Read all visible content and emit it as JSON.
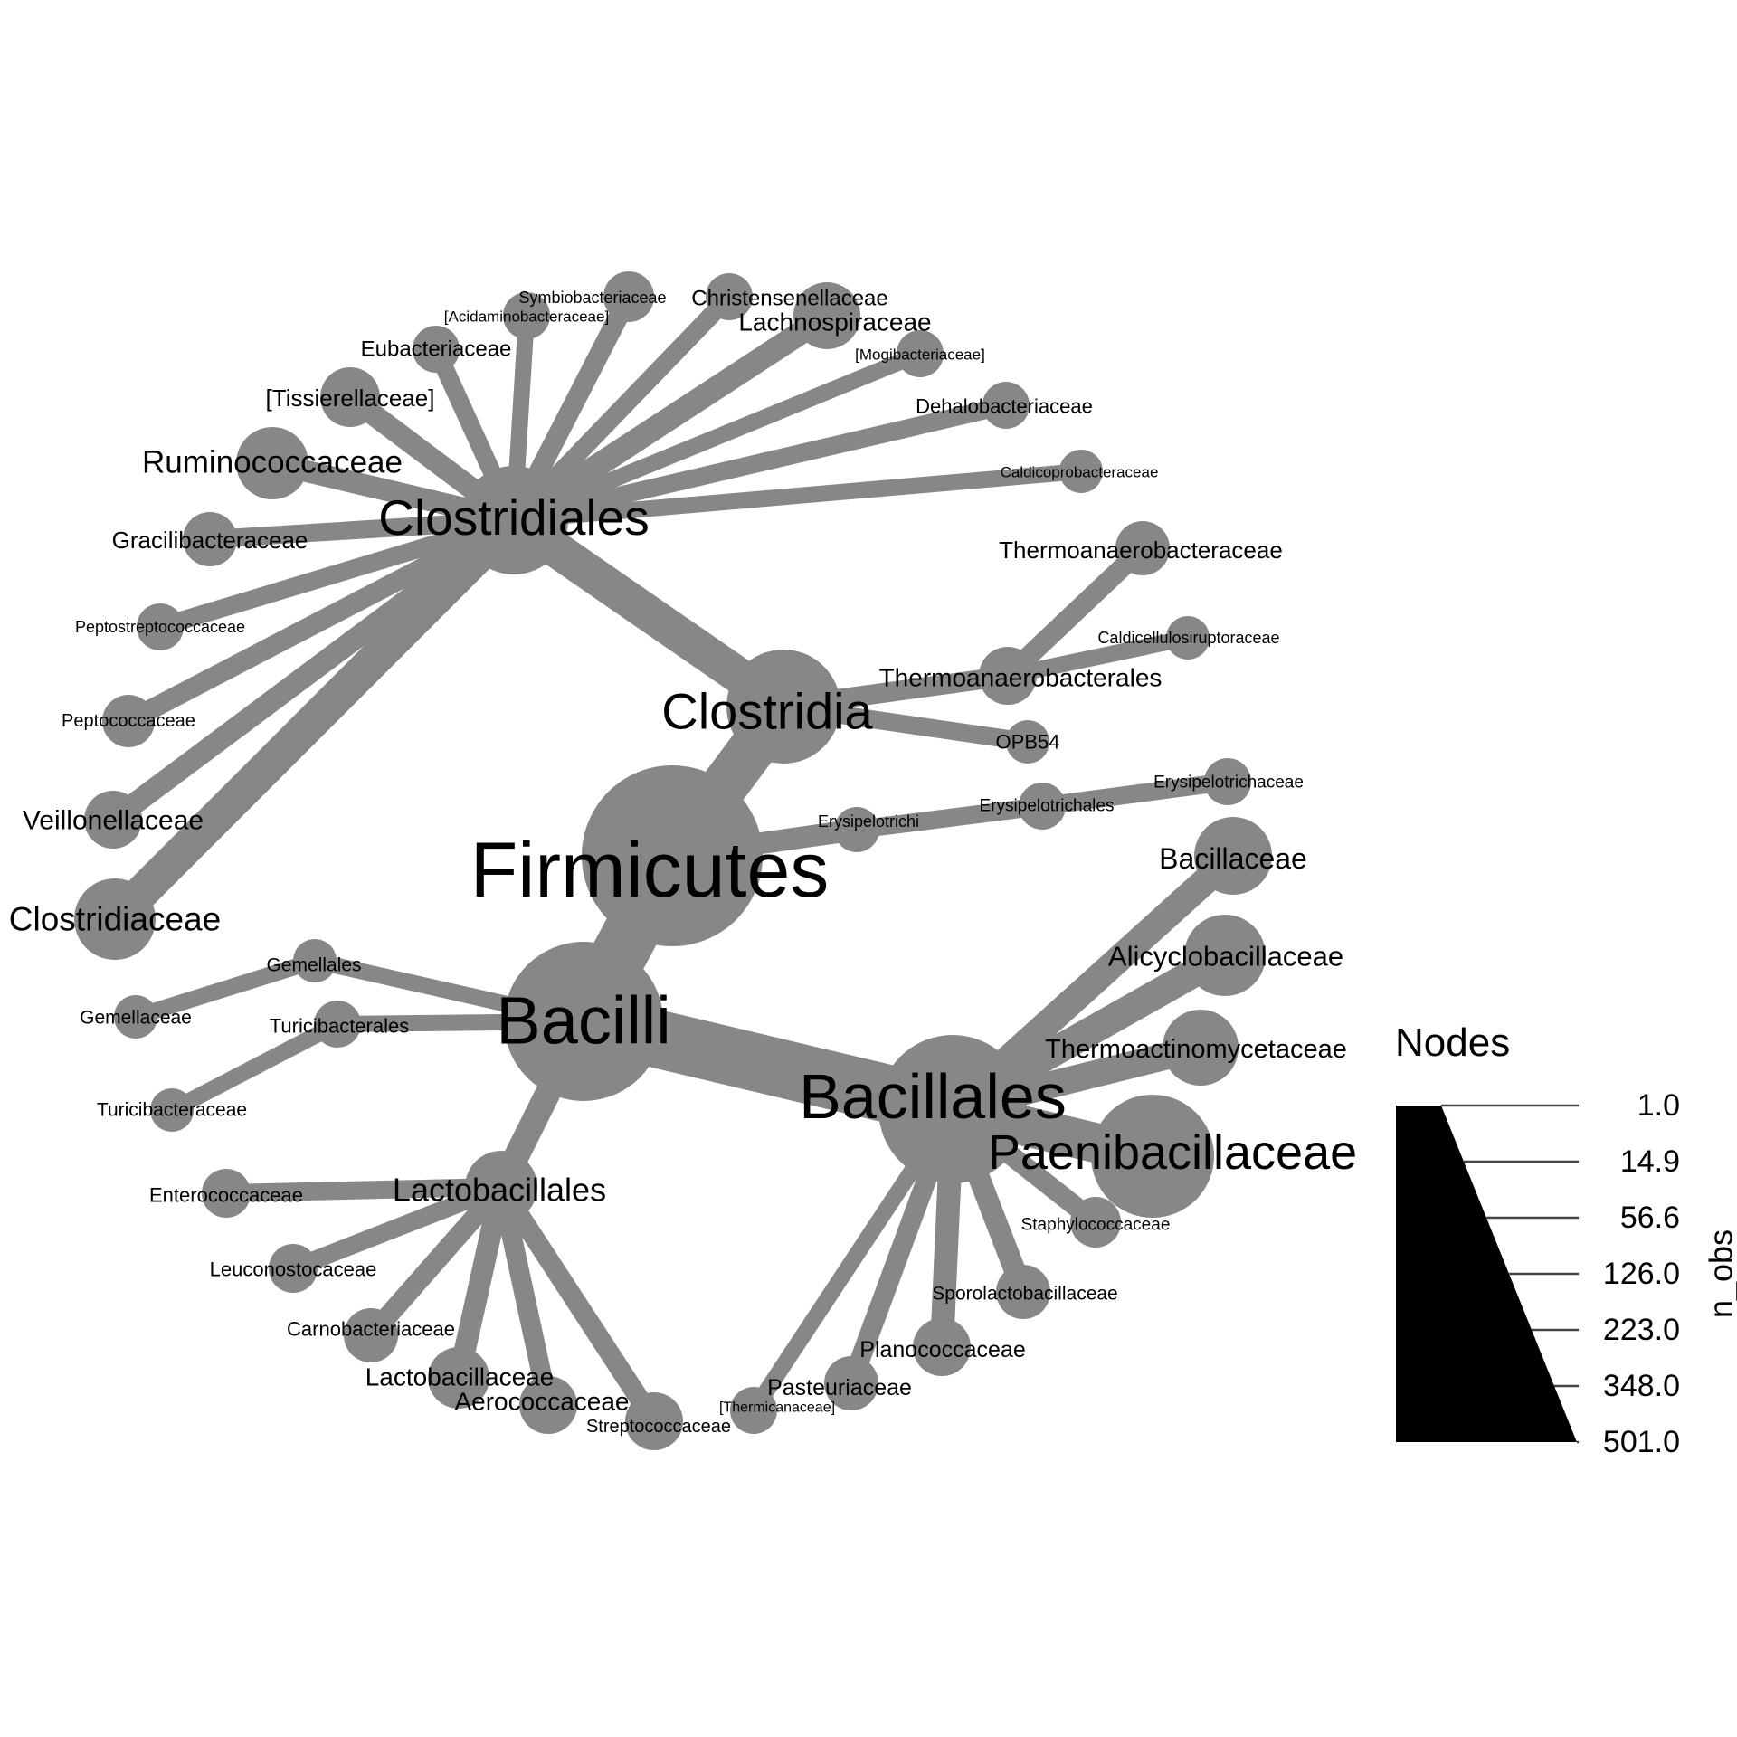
{
  "legend": {
    "title": "Nodes",
    "axis_label": "n_obs",
    "values": [
      "1.0",
      "14.9",
      "56.6",
      "126.0",
      "223.0",
      "348.0",
      "501.0"
    ]
  },
  "colors": {
    "node": "#878787",
    "text": "#000000",
    "legend_fill": "#000000"
  },
  "tree": {
    "nodes": [
      {
        "id": "firmicutes",
        "name": "Firmicutes",
        "parent": null
      },
      {
        "id": "clostridia",
        "name": "Clostridia",
        "parent": "firmicutes"
      },
      {
        "id": "bacilli",
        "name": "Bacilli",
        "parent": "firmicutes"
      },
      {
        "id": "erysipelotrichi",
        "name": "Erysipelotrichi",
        "parent": "firmicutes"
      },
      {
        "id": "clostridiales",
        "name": "Clostridiales",
        "parent": "clostridia"
      },
      {
        "id": "thermoanaerobacterales",
        "name": "Thermoanaerobacterales",
        "parent": "clostridia"
      },
      {
        "id": "opb54",
        "name": "OPB54",
        "parent": "clostridia"
      },
      {
        "id": "erysipelotrichales",
        "name": "Erysipelotrichales",
        "parent": "erysipelotrichi"
      },
      {
        "id": "erysipelotrichaceae",
        "name": "Erysipelotrichaceae",
        "parent": "erysipelotrichales"
      },
      {
        "id": "thermoanaerobacteraceae",
        "name": "Thermoanaerobacteraceae",
        "parent": "thermoanaerobacterales"
      },
      {
        "id": "caldicellulosiruptoraceae",
        "name": "Caldicellulosiruptoraceae",
        "parent": "thermoanaerobacterales"
      },
      {
        "id": "clostridiaceae",
        "name": "Clostridiaceae",
        "parent": "clostridiales"
      },
      {
        "id": "veillonellaceae",
        "name": "Veillonellaceae",
        "parent": "clostridiales"
      },
      {
        "id": "peptococcaceae",
        "name": "Peptococcaceae",
        "parent": "clostridiales"
      },
      {
        "id": "peptostreptococcaceae",
        "name": "Peptostreptococcaceae",
        "parent": "clostridiales"
      },
      {
        "id": "gracilibacteraceae",
        "name": "Gracilibacteraceae",
        "parent": "clostridiales"
      },
      {
        "id": "ruminococcaceae",
        "name": "Ruminococcaceae",
        "parent": "clostridiales"
      },
      {
        "id": "tissierellaceae",
        "name": "[Tissierellaceae]",
        "parent": "clostridiales"
      },
      {
        "id": "eubacteriaceae",
        "name": "Eubacteriaceae",
        "parent": "clostridiales"
      },
      {
        "id": "acidaminobacteraceae",
        "name": "[Acidaminobacteraceae]",
        "parent": "clostridiales"
      },
      {
        "id": "symbiobacteriaceae",
        "name": "Symbiobacteriaceae",
        "parent": "clostridiales"
      },
      {
        "id": "christensenellaceae",
        "name": "Christensenellaceae",
        "parent": "clostridiales"
      },
      {
        "id": "lachnospiraceae",
        "name": "Lachnospiraceae",
        "parent": "clostridiales"
      },
      {
        "id": "mogibacteriaceae",
        "name": "[Mogibacteriaceae]",
        "parent": "clostridiales"
      },
      {
        "id": "dehalobacteriaceae",
        "name": "Dehalobacteriaceae",
        "parent": "clostridiales"
      },
      {
        "id": "caldicoprobacteraceae",
        "name": "Caldicoprobacteraceae",
        "parent": "clostridiales"
      },
      {
        "id": "gemellales",
        "name": "Gemellales",
        "parent": "bacilli"
      },
      {
        "id": "turicibacterales",
        "name": "Turicibacterales",
        "parent": "bacilli"
      },
      {
        "id": "lactobacillales",
        "name": "Lactobacillales",
        "parent": "bacilli"
      },
      {
        "id": "bacillales",
        "name": "Bacillales",
        "parent": "bacilli"
      },
      {
        "id": "gemellaceae",
        "name": "Gemellaceae",
        "parent": "gemellales"
      },
      {
        "id": "turicibacteraceae",
        "name": "Turicibacteraceae",
        "parent": "turicibacterales"
      },
      {
        "id": "enterococcaceae",
        "name": "Enterococcaceae",
        "parent": "lactobacillales"
      },
      {
        "id": "leuconostocaceae",
        "name": "Leuconostocaceae",
        "parent": "lactobacillales"
      },
      {
        "id": "carnobacteriaceae",
        "name": "Carnobacteriaceae",
        "parent": "lactobacillales"
      },
      {
        "id": "lactobacillaceae",
        "name": "Lactobacillaceae",
        "parent": "lactobacillales"
      },
      {
        "id": "aerococcaceae",
        "name": "Aerococcaceae",
        "parent": "lactobacillales"
      },
      {
        "id": "streptococcaceae",
        "name": "Streptococcaceae",
        "parent": "lactobacillales"
      },
      {
        "id": "bacillaceae",
        "name": "Bacillaceae",
        "parent": "bacillales"
      },
      {
        "id": "alicyclobacillaceae",
        "name": "Alicyclobacillaceae",
        "parent": "bacillales"
      },
      {
        "id": "thermoactinomycetaceae",
        "name": "Thermoactinomycetaceae",
        "parent": "bacillales"
      },
      {
        "id": "paenibacillaceae",
        "name": "Paenibacillaceae",
        "parent": "bacillales"
      },
      {
        "id": "staphylococcaceae",
        "name": "Staphylococcaceae",
        "parent": "bacillales"
      },
      {
        "id": "sporolactobacillaceae",
        "name": "Sporolactobacillaceae",
        "parent": "bacillales"
      },
      {
        "id": "planococcaceae",
        "name": "Planococcaceae",
        "parent": "bacillales"
      },
      {
        "id": "pasteuriaceae",
        "name": "Pasteuriaceae",
        "parent": "bacillales"
      },
      {
        "id": "thermicanaceae",
        "name": "[Thermicanaceae]",
        "parent": "bacillales"
      }
    ]
  }
}
